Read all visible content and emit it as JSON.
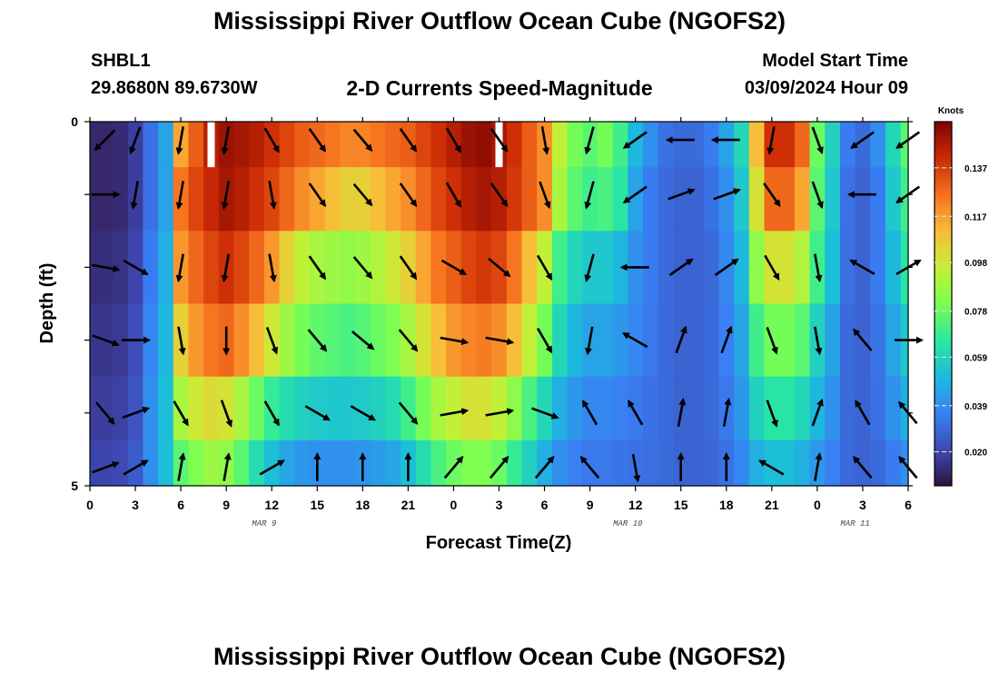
{
  "header": {
    "title": "Mississippi River Outflow Ocean Cube (NGOFS2)",
    "station_id": "SHBL1",
    "coordinates": "29.8680N  89.6730W",
    "plot_title": "2-D Currents Speed-Magnitude",
    "start_label": "Model Start Time",
    "start_value": "03/09/2024 Hour 09"
  },
  "footer": {
    "title_repeat": "Mississippi River Outflow Ocean Cube (NGOFS2)"
  },
  "chart_data": {
    "type": "heatmap",
    "xlabel": "Forecast Time(Z)",
    "ylabel": "Depth (ft)",
    "x_tick_labels": [
      "0",
      "3",
      "6",
      "9",
      "12",
      "15",
      "18",
      "21",
      "0",
      "3",
      "6",
      "9",
      "12",
      "15",
      "18",
      "21",
      "0",
      "3",
      "6"
    ],
    "x_range_hours": [
      0,
      54
    ],
    "date_labels": [
      {
        "text": "MAR 9",
        "hour": 11.5
      },
      {
        "text": "MAR 10",
        "hour": 35.5
      },
      {
        "text": "MAR 11",
        "hour": 50.5
      }
    ],
    "y_tick_labels": [
      "0",
      "5"
    ],
    "ylim": [
      0,
      5
    ],
    "depth_levels_ft": [
      0.25,
      1,
      2,
      3,
      4,
      4.75
    ],
    "time_hours": [
      0,
      1,
      2,
      3,
      4,
      5,
      6,
      7,
      8,
      9,
      10,
      11,
      12,
      13,
      14,
      15,
      16,
      17,
      18,
      19,
      20,
      21,
      22,
      23,
      24,
      25,
      26,
      27,
      28,
      29,
      30,
      31,
      32,
      33,
      34,
      35,
      36,
      37,
      38,
      39,
      40,
      41,
      42,
      43,
      44,
      45,
      46,
      47,
      48,
      49,
      50,
      51,
      52,
      53,
      54
    ],
    "colorbar": {
      "label": "Knots",
      "ticks": [
        0.02,
        0.039,
        0.059,
        0.078,
        0.098,
        0.117,
        0.137
      ],
      "tick_labels": [
        "0.020",
        "0.039",
        "0.059",
        "0.078",
        "0.098",
        "0.117",
        "0.137"
      ],
      "range": [
        0.006,
        0.156
      ]
    },
    "speed_knots": [
      [
        0.012,
        0.012,
        0.013,
        0.018,
        0.032,
        0.045,
        0.115,
        0.13,
        0.145,
        0.15,
        0.148,
        0.145,
        0.14,
        0.135,
        0.13,
        0.128,
        0.125,
        0.122,
        0.122,
        0.125,
        0.128,
        0.13,
        0.135,
        0.14,
        0.145,
        0.15,
        0.152,
        0.148,
        0.14,
        0.13,
        0.12,
        0.095,
        0.08,
        0.075,
        0.08,
        0.07,
        0.05,
        0.04,
        0.032,
        0.03,
        0.03,
        0.035,
        0.045,
        0.06,
        0.11,
        0.14,
        0.14,
        0.128,
        0.078,
        0.058,
        0.035,
        0.03,
        0.04,
        0.06,
        0.075
      ],
      [
        0.012,
        0.012,
        0.013,
        0.018,
        0.032,
        0.045,
        0.125,
        0.135,
        0.142,
        0.148,
        0.145,
        0.14,
        0.135,
        0.128,
        0.12,
        0.115,
        0.11,
        0.105,
        0.105,
        0.11,
        0.115,
        0.12,
        0.128,
        0.135,
        0.14,
        0.145,
        0.148,
        0.145,
        0.138,
        0.13,
        0.12,
        0.09,
        0.075,
        0.07,
        0.072,
        0.065,
        0.045,
        0.035,
        0.03,
        0.028,
        0.028,
        0.032,
        0.04,
        0.055,
        0.1,
        0.128,
        0.128,
        0.115,
        0.075,
        0.055,
        0.032,
        0.028,
        0.035,
        0.055,
        0.07
      ],
      [
        0.014,
        0.014,
        0.015,
        0.02,
        0.035,
        0.048,
        0.118,
        0.128,
        0.135,
        0.14,
        0.135,
        0.128,
        0.118,
        0.105,
        0.095,
        0.09,
        0.088,
        0.086,
        0.088,
        0.092,
        0.098,
        0.105,
        0.115,
        0.125,
        0.13,
        0.135,
        0.138,
        0.135,
        0.125,
        0.11,
        0.095,
        0.07,
        0.06,
        0.055,
        0.055,
        0.05,
        0.04,
        0.035,
        0.03,
        0.028,
        0.028,
        0.03,
        0.038,
        0.05,
        0.085,
        0.1,
        0.1,
        0.092,
        0.07,
        0.052,
        0.032,
        0.028,
        0.035,
        0.05,
        0.065
      ],
      [
        0.016,
        0.016,
        0.017,
        0.022,
        0.038,
        0.05,
        0.105,
        0.118,
        0.125,
        0.128,
        0.12,
        0.11,
        0.098,
        0.088,
        0.08,
        0.076,
        0.074,
        0.072,
        0.074,
        0.078,
        0.082,
        0.09,
        0.1,
        0.11,
        0.118,
        0.122,
        0.124,
        0.12,
        0.11,
        0.095,
        0.08,
        0.06,
        0.05,
        0.045,
        0.045,
        0.042,
        0.038,
        0.034,
        0.03,
        0.028,
        0.028,
        0.03,
        0.036,
        0.046,
        0.07,
        0.08,
        0.08,
        0.075,
        0.058,
        0.045,
        0.03,
        0.028,
        0.033,
        0.045,
        0.055
      ],
      [
        0.018,
        0.018,
        0.019,
        0.024,
        0.04,
        0.052,
        0.09,
        0.098,
        0.102,
        0.1,
        0.09,
        0.078,
        0.068,
        0.062,
        0.058,
        0.056,
        0.055,
        0.055,
        0.056,
        0.058,
        0.062,
        0.07,
        0.08,
        0.09,
        0.095,
        0.1,
        0.1,
        0.095,
        0.085,
        0.072,
        0.06,
        0.048,
        0.042,
        0.038,
        0.038,
        0.036,
        0.034,
        0.032,
        0.03,
        0.028,
        0.028,
        0.03,
        0.034,
        0.042,
        0.058,
        0.065,
        0.065,
        0.06,
        0.05,
        0.04,
        0.03,
        0.028,
        0.032,
        0.04,
        0.048
      ],
      [
        0.02,
        0.02,
        0.021,
        0.026,
        0.04,
        0.052,
        0.075,
        0.082,
        0.088,
        0.085,
        0.075,
        0.062,
        0.052,
        0.046,
        0.042,
        0.04,
        0.04,
        0.04,
        0.041,
        0.043,
        0.046,
        0.052,
        0.062,
        0.072,
        0.078,
        0.082,
        0.082,
        0.078,
        0.068,
        0.058,
        0.048,
        0.04,
        0.036,
        0.034,
        0.034,
        0.033,
        0.032,
        0.031,
        0.03,
        0.028,
        0.028,
        0.029,
        0.032,
        0.038,
        0.048,
        0.052,
        0.052,
        0.048,
        0.042,
        0.036,
        0.03,
        0.028,
        0.03,
        0.035,
        0.04
      ]
    ],
    "vectors_hours": [
      1,
      3,
      6,
      9,
      12,
      15,
      18,
      21,
      24,
      27,
      30,
      33,
      36,
      39,
      42,
      45,
      48,
      51,
      54
    ],
    "vector_directions_deg": [
      [
        225,
        200,
        190,
        190,
        150,
        145,
        140,
        145,
        150,
        145,
        170,
        195,
        235,
        270,
        270,
        190,
        160,
        235,
        235
      ],
      [
        90,
        190,
        190,
        190,
        170,
        145,
        140,
        145,
        150,
        145,
        160,
        195,
        235,
        70,
        70,
        145,
        160,
        270,
        235
      ],
      [
        100,
        120,
        190,
        190,
        170,
        145,
        140,
        145,
        120,
        130,
        150,
        195,
        270,
        55,
        55,
        150,
        170,
        300,
        60
      ],
      [
        110,
        90,
        170,
        180,
        160,
        140,
        130,
        140,
        100,
        100,
        150,
        190,
        300,
        20,
        20,
        160,
        170,
        320,
        90
      ],
      [
        140,
        70,
        150,
        160,
        150,
        120,
        120,
        140,
        80,
        80,
        110,
        330,
        330,
        10,
        10,
        160,
        20,
        330,
        320
      ],
      [
        70,
        60,
        10,
        10,
        60,
        0,
        0,
        0,
        40,
        40,
        40,
        320,
        170,
        0,
        0,
        300,
        10,
        320,
        320
      ]
    ],
    "missing_cells": [
      [
        8,
        0
      ],
      [
        27,
        0
      ]
    ],
    "grid": false
  }
}
